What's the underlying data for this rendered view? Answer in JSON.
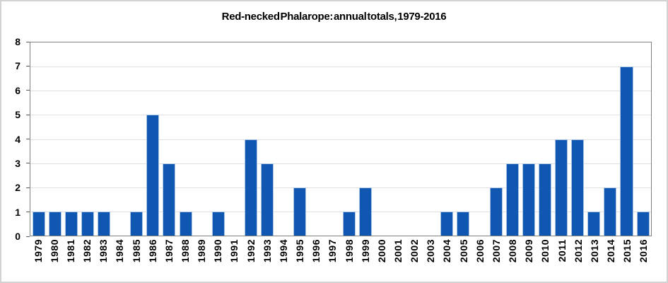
{
  "colors": {
    "bar_fill": "#1057B2",
    "bar_border": "#A9C4E4",
    "gridline": "#E0E0E0",
    "axis_line": "#808080",
    "tick_color": "#595959",
    "frame_border": "#D2D2D2",
    "text_color": "#000000"
  },
  "chart_data": {
    "type": "bar",
    "title": "Red-necked Phalarope: annual totals, 1979-2016",
    "xlabel": "",
    "ylabel": "",
    "categories": [
      "1979",
      "1980",
      "1981",
      "1982",
      "1983",
      "1984",
      "1985",
      "1986",
      "1987",
      "1988",
      "1989",
      "1990",
      "1991",
      "1992",
      "1993",
      "1994",
      "1995",
      "1996",
      "1997",
      "1998",
      "1999",
      "2000",
      "2001",
      "2002",
      "2003",
      "2004",
      "2005",
      "2006",
      "2007",
      "2008",
      "2009",
      "2010",
      "2011",
      "2012",
      "2013",
      "2014",
      "2015",
      "2016"
    ],
    "values": [
      1,
      1,
      1,
      1,
      1,
      0,
      1,
      5,
      3,
      1,
      0,
      1,
      0,
      4,
      3,
      0,
      2,
      0,
      0,
      1,
      2,
      0,
      0,
      0,
      0,
      1,
      1,
      0,
      2,
      3,
      3,
      3,
      4,
      4,
      1,
      2,
      7,
      1
    ],
    "ylim": [
      0,
      8
    ],
    "ytick_step": 1,
    "yticks": [
      0,
      1,
      2,
      3,
      4,
      5,
      6,
      7,
      8
    ],
    "grid": true,
    "legend": false,
    "bar_color": "#1057B2"
  }
}
